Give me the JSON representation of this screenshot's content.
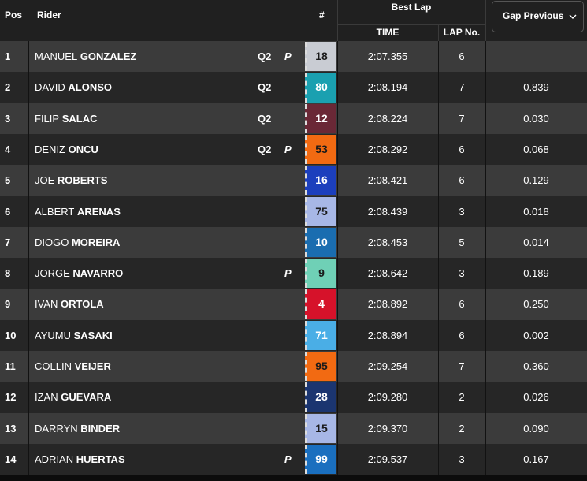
{
  "header": {
    "pos": "Pos",
    "rider": "Rider",
    "number": "#",
    "best_lap": "Best Lap",
    "time": "TIME",
    "lap_no": "LAP No.",
    "gap": "Gap Previous"
  },
  "table": {
    "rows": [
      {
        "pos": "1",
        "first": "MANUEL",
        "last": "GONZALEZ",
        "tag": "Q2",
        "flag": "P",
        "number": "18",
        "number_bg": "#c9ccd3",
        "number_fg": "#1a1a1a",
        "time": "2:07.355",
        "lap": "6"
      },
      {
        "pos": "2",
        "first": "DAVID",
        "last": "ALONSO",
        "tag": "Q2",
        "number": "80",
        "number_bg": "#1aa0b0",
        "number_fg": "#ffffff",
        "time": "2:08.194",
        "lap": "7",
        "gap": "0.839"
      },
      {
        "pos": "3",
        "first": "FILIP",
        "last": "SALAC",
        "tag": "Q2",
        "number": "12",
        "number_bg": "#6a2836",
        "number_fg": "#ffffff",
        "time": "2:08.224",
        "lap": "7",
        "gap": "0.030"
      },
      {
        "pos": "4",
        "first": "DENIZ",
        "last": "ONCU",
        "tag": "Q2",
        "flag": "P",
        "number": "53",
        "number_bg": "#f26a12",
        "number_fg": "#1a1a1a",
        "time": "2:08.292",
        "lap": "6",
        "gap": "0.068"
      },
      {
        "pos": "5",
        "first": "JOE",
        "last": "ROBERTS",
        "number": "16",
        "number_bg": "#1c3fbd",
        "number_fg": "#ffffff",
        "time": "2:08.421",
        "lap": "6",
        "gap": "0.129"
      },
      {
        "pos": "6",
        "first": "ALBERT",
        "last": "ARENAS",
        "number": "75",
        "number_bg": "#a7b7e6",
        "number_fg": "#1a1a1a",
        "time": "2:08.439",
        "lap": "3",
        "gap": "0.018"
      },
      {
        "pos": "7",
        "first": "DIOGO",
        "last": "MOREIRA",
        "number": "10",
        "number_bg": "#1a6db0",
        "number_fg": "#ffffff",
        "time": "2:08.453",
        "lap": "5",
        "gap": "0.014"
      },
      {
        "pos": "8",
        "first": "JORGE",
        "last": "NAVARRO",
        "flag": "P",
        "number": "9",
        "number_bg": "#6fd0b6",
        "number_fg": "#1a1a1a",
        "time": "2:08.642",
        "lap": "3",
        "gap": "0.189"
      },
      {
        "pos": "9",
        "first": "IVAN",
        "last": "ORTOLA",
        "number": "4",
        "number_bg": "#d6122a",
        "number_fg": "#ffffff",
        "time": "2:08.892",
        "lap": "6",
        "gap": "0.250"
      },
      {
        "pos": "10",
        "first": "AYUMU",
        "last": "SASAKI",
        "number": "71",
        "number_bg": "#4aaee6",
        "number_fg": "#ffffff",
        "time": "2:08.894",
        "lap": "6",
        "gap": "0.002"
      },
      {
        "pos": "11",
        "first": "COLLIN",
        "last": "VEIJER",
        "number": "95",
        "number_bg": "#f26a12",
        "number_fg": "#1a1a1a",
        "time": "2:09.254",
        "lap": "7",
        "gap": "0.360"
      },
      {
        "pos": "12",
        "first": "IZAN",
        "last": "GUEVARA",
        "number": "28",
        "number_bg": "#1b3570",
        "number_fg": "#ffffff",
        "time": "2:09.280",
        "lap": "2",
        "gap": "0.026"
      },
      {
        "pos": "13",
        "first": "DARRYN",
        "last": "BINDER",
        "number": "15",
        "number_bg": "#a7b7e6",
        "number_fg": "#1a1a1a",
        "time": "2:09.370",
        "lap": "2",
        "gap": "0.090"
      },
      {
        "pos": "14",
        "first": "ADRIAN",
        "last": "HUERTAS",
        "flag": "P",
        "number": "99",
        "number_bg": "#1a6fbf",
        "number_fg": "#ffffff",
        "time": "2:09.537",
        "lap": "3",
        "gap": "0.167"
      }
    ]
  }
}
